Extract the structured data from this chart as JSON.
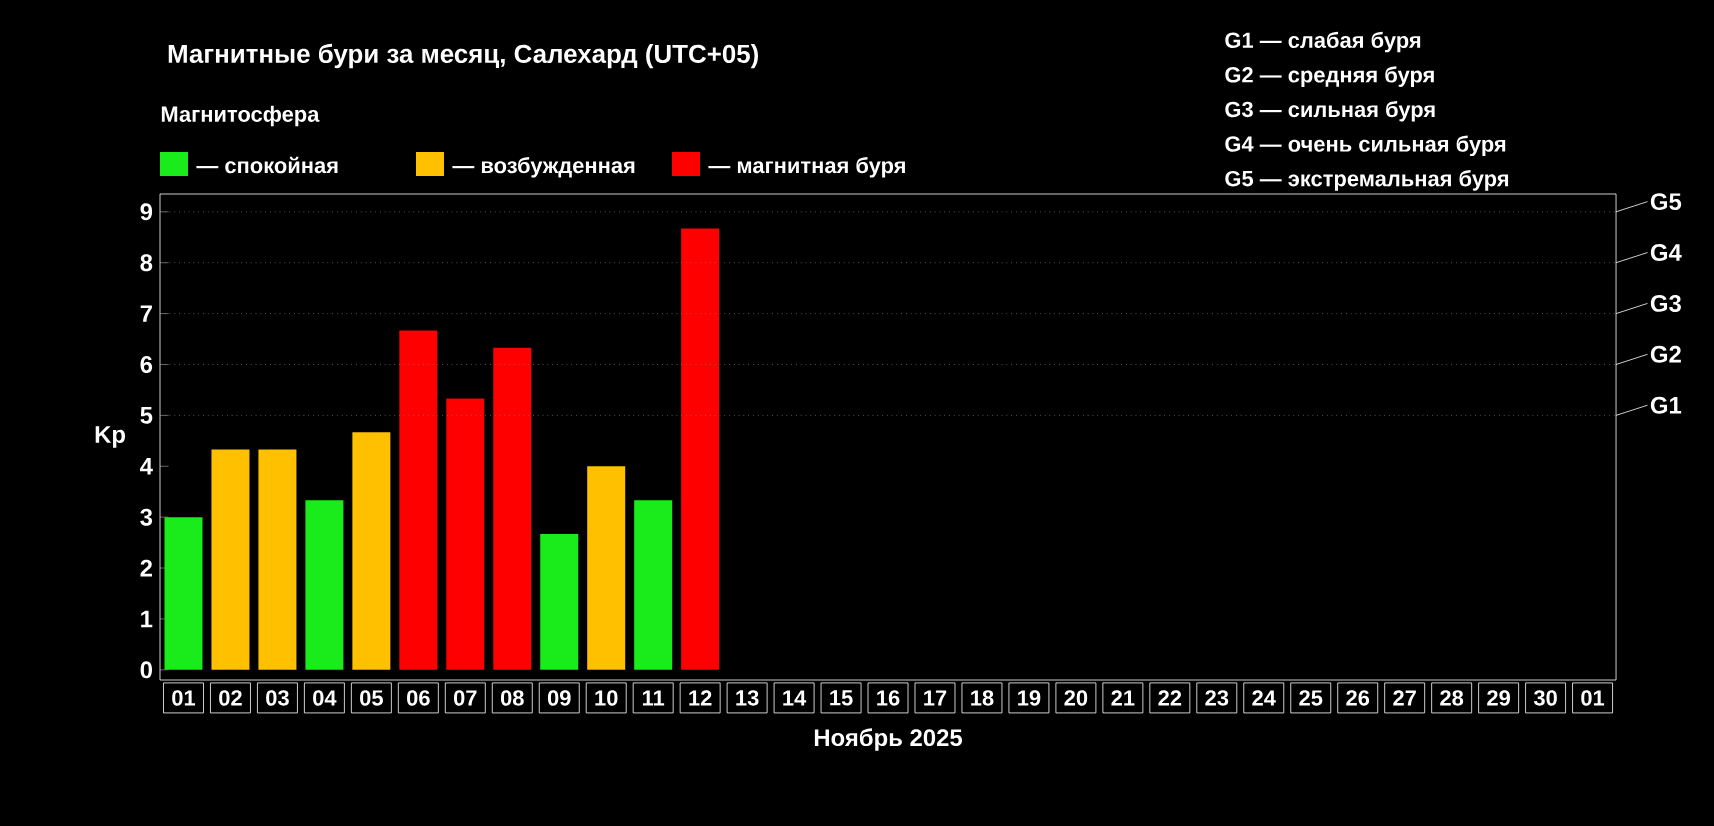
{
  "chart_data": {
    "type": "bar",
    "title": "Магнитные бури за месяц, Салехард (UTC+05)",
    "xlabel": "Ноябрь 2025",
    "ylabel": "Kp",
    "legend_title": "Магнитосфера",
    "categories": [
      "01",
      "02",
      "03",
      "04",
      "05",
      "06",
      "07",
      "08",
      "09",
      "10",
      "11",
      "12",
      "13",
      "14",
      "15",
      "16",
      "17",
      "18",
      "19",
      "20",
      "21",
      "22",
      "23",
      "24",
      "25",
      "26",
      "27",
      "28",
      "29",
      "30",
      "01"
    ],
    "series": [
      {
        "name": "— спокойная",
        "color": "#1aeb1a",
        "values": [
          3.0,
          null,
          null,
          3.33,
          null,
          null,
          null,
          null,
          2.67,
          null,
          3.33,
          null,
          null,
          null,
          null,
          null,
          null,
          null,
          null,
          null,
          null,
          null,
          null,
          null,
          null,
          null,
          null,
          null,
          null,
          null,
          null
        ]
      },
      {
        "name": "— возбужденная",
        "color": "#ffc000",
        "values": [
          null,
          4.33,
          4.33,
          null,
          4.67,
          null,
          null,
          null,
          null,
          4.0,
          null,
          null,
          null,
          null,
          null,
          null,
          null,
          null,
          null,
          null,
          null,
          null,
          null,
          null,
          null,
          null,
          null,
          null,
          null,
          null,
          null
        ]
      },
      {
        "name": "— магнитная буря",
        "color": "#ff0000",
        "values": [
          null,
          null,
          null,
          null,
          null,
          6.67,
          5.33,
          6.33,
          null,
          null,
          null,
          8.67,
          null,
          null,
          null,
          null,
          null,
          null,
          null,
          null,
          null,
          null,
          null,
          null,
          null,
          null,
          null,
          null,
          null,
          null,
          null
        ]
      }
    ],
    "ylim": [
      -0.2,
      9.35
    ],
    "yticks": [
      0,
      1,
      2,
      3,
      4,
      5,
      6,
      7,
      8,
      9
    ],
    "ref_lines": [
      {
        "axis": "y",
        "value": 5,
        "label": "G1",
        "color": "#808080",
        "line_style": "dotted"
      },
      {
        "axis": "y",
        "value": 6,
        "label": "G2",
        "color": "#808080",
        "line_style": "dotted"
      },
      {
        "axis": "y",
        "value": 7,
        "label": "G3",
        "color": "#808080",
        "line_style": "dotted"
      },
      {
        "axis": "y",
        "value": 8,
        "label": "G4",
        "color": "#808080",
        "line_style": "dotted"
      },
      {
        "axis": "y",
        "value": 9,
        "label": "G5",
        "color": "#808080",
        "line_style": "dotted"
      }
    ],
    "legend": "top left",
    "annotations": [
      "G1 — слабая буря",
      "G2 — средняя буря",
      "G3 — сильная буря",
      "G4 — очень сильная буря",
      "G5 — экстремальная буря"
    ]
  }
}
